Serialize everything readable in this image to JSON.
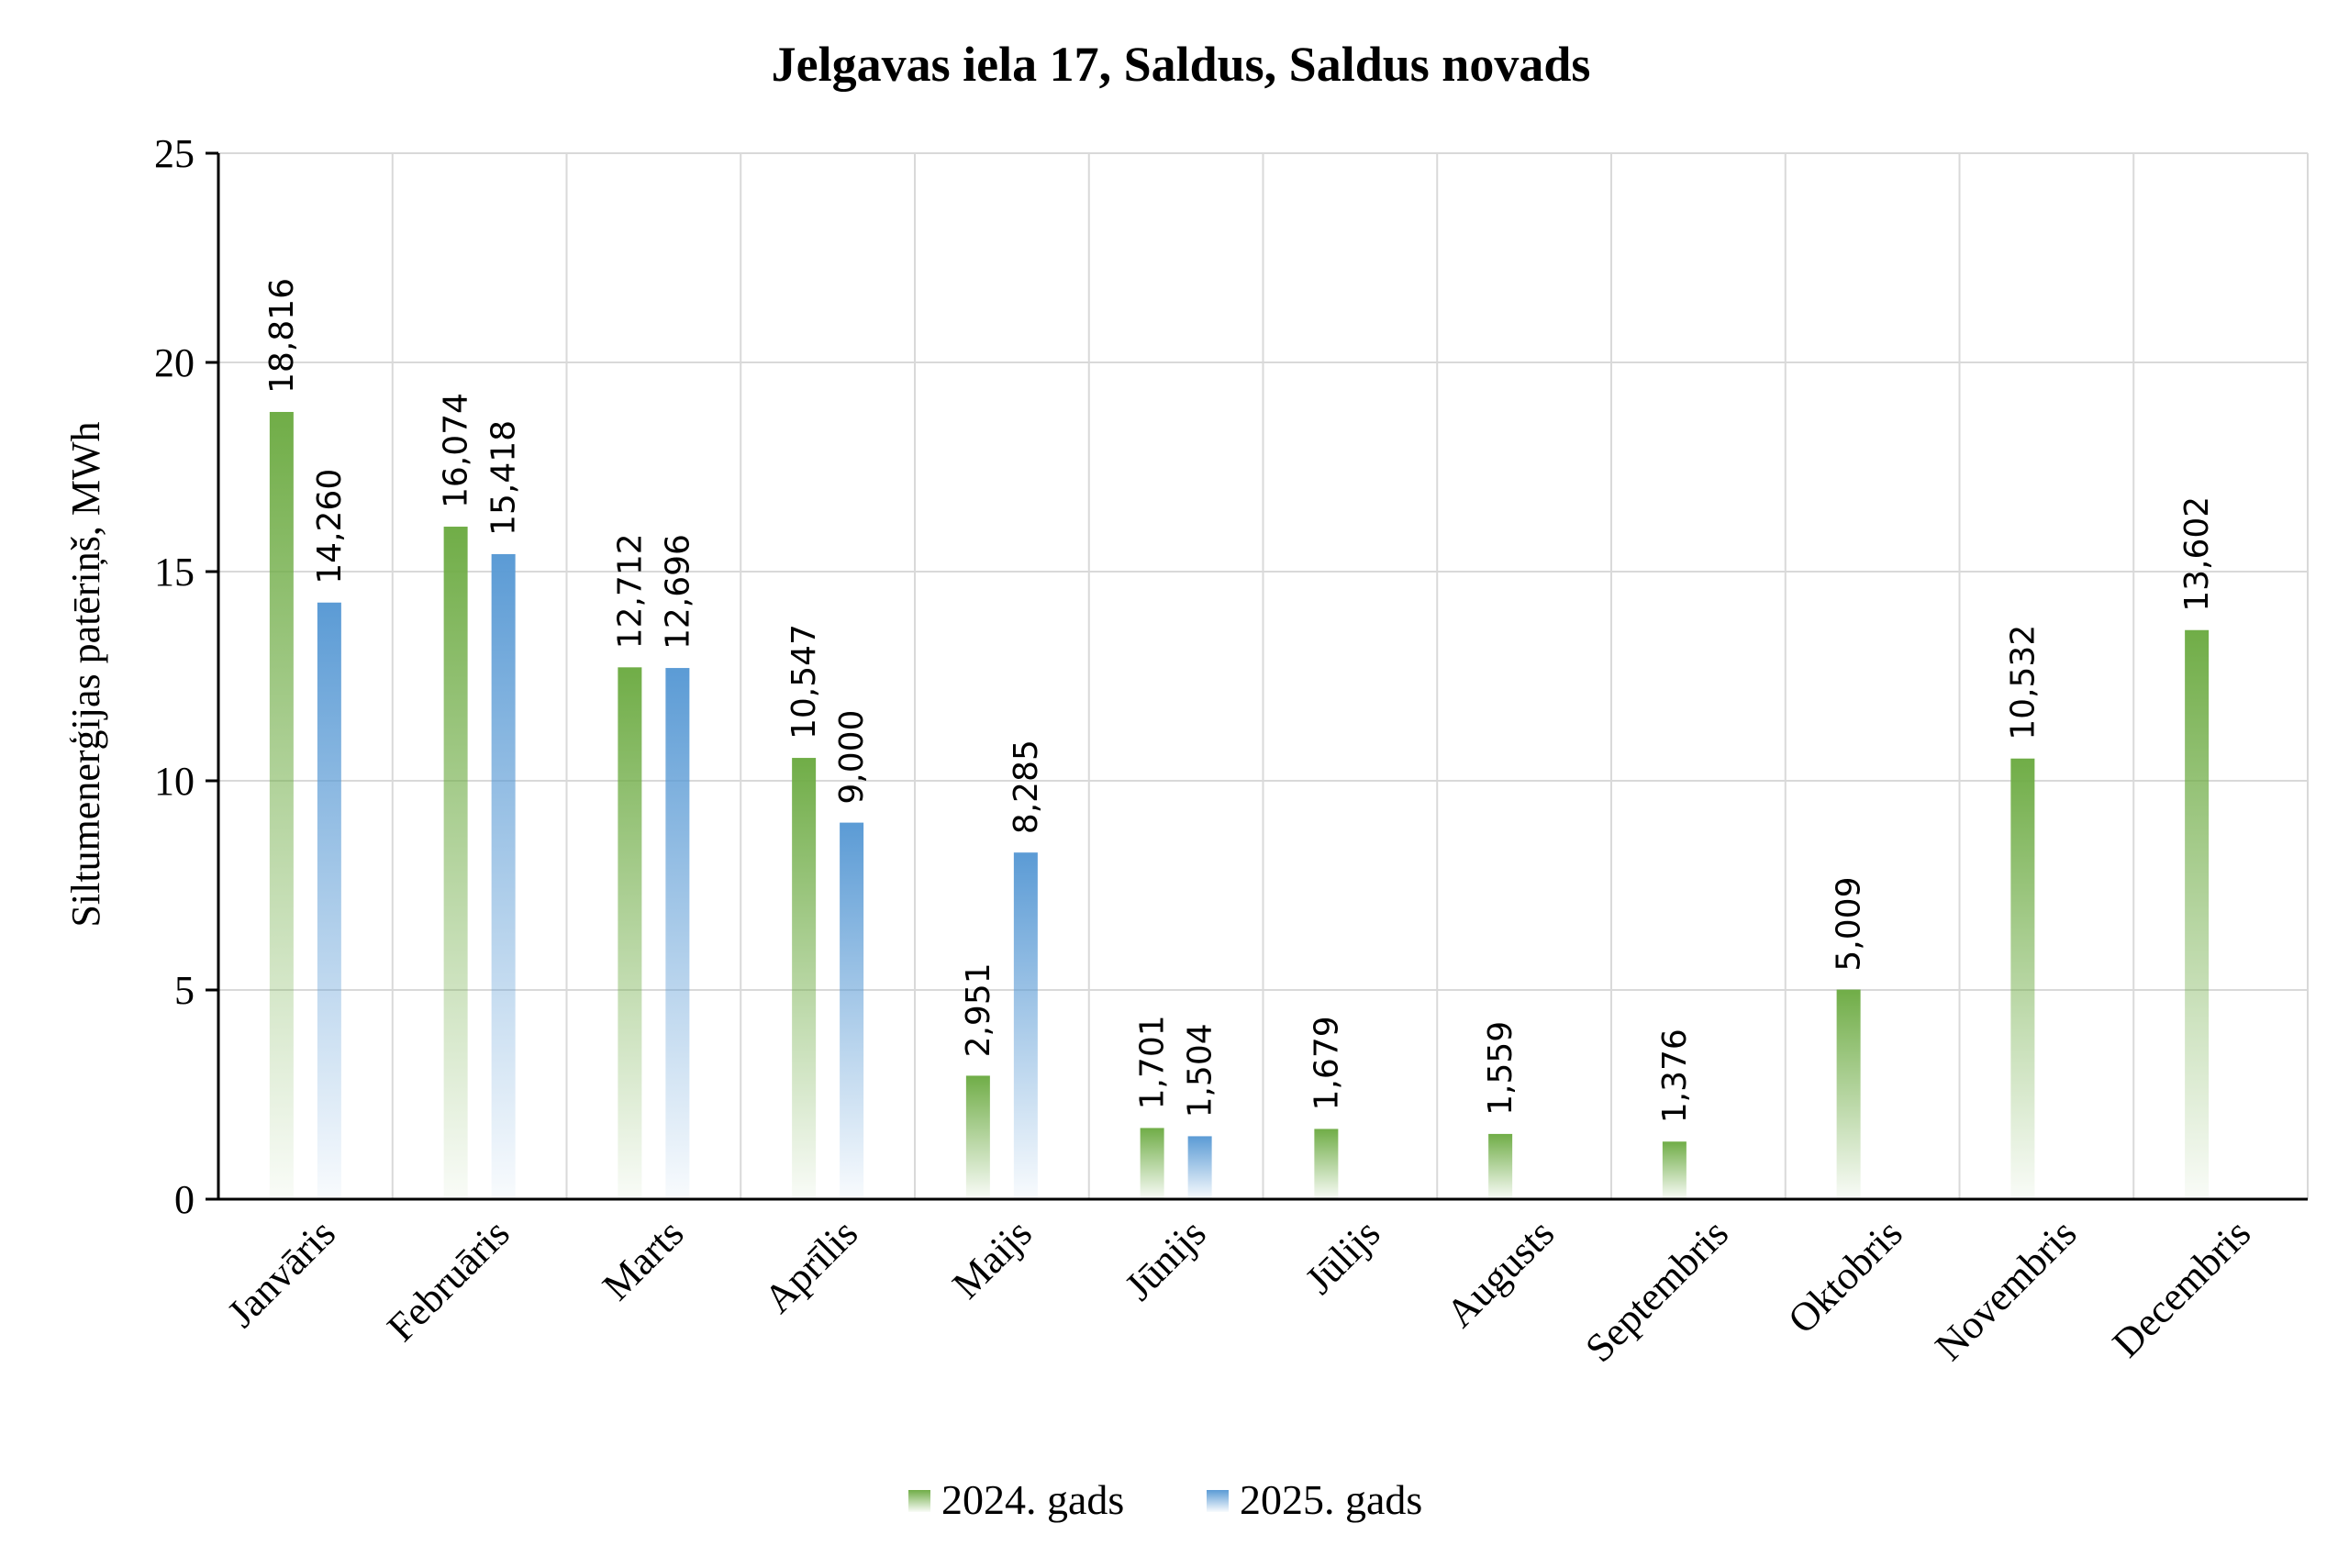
{
  "chart_data": {
    "type": "bar",
    "title": "Jelgavas iela 17, Saldus, Saldus novads",
    "ylabel": "Siltumenerģijas patēriņš, MWh",
    "xlabel": "",
    "ylim": [
      0,
      25
    ],
    "yticks": [
      0,
      5,
      10,
      15,
      20,
      25
    ],
    "grid": true,
    "legend_position": "bottom",
    "categories": [
      "Janvāris",
      "Februāris",
      "Marts",
      "Aprīlis",
      "Maijs",
      "Jūnijs",
      "Jūlijs",
      "Augusts",
      "Septembris",
      "Oktobris",
      "Novembris",
      "Decembris"
    ],
    "series": [
      {
        "name": "2024. gads",
        "color": "#70ad47",
        "values": [
          18.816,
          16.074,
          12.712,
          10.547,
          2.951,
          1.701,
          1.679,
          1.559,
          1.376,
          5.009,
          10.532,
          13.602
        ],
        "labels": [
          "18,816",
          "16,074",
          "12,712",
          "10,547",
          "2,951",
          "1,701",
          "1,679",
          "1,559",
          "1,376",
          "5,009",
          "10,532",
          "13,602"
        ]
      },
      {
        "name": "2025. gads",
        "color": "#5b9bd5",
        "values": [
          14.26,
          15.418,
          12.696,
          9.0,
          8.285,
          1.504,
          null,
          null,
          null,
          null,
          null,
          null
        ],
        "labels": [
          "14,260",
          "15,418",
          "12,696",
          "9,000",
          "8,285",
          "1,504",
          null,
          null,
          null,
          null,
          null,
          null
        ]
      }
    ]
  }
}
